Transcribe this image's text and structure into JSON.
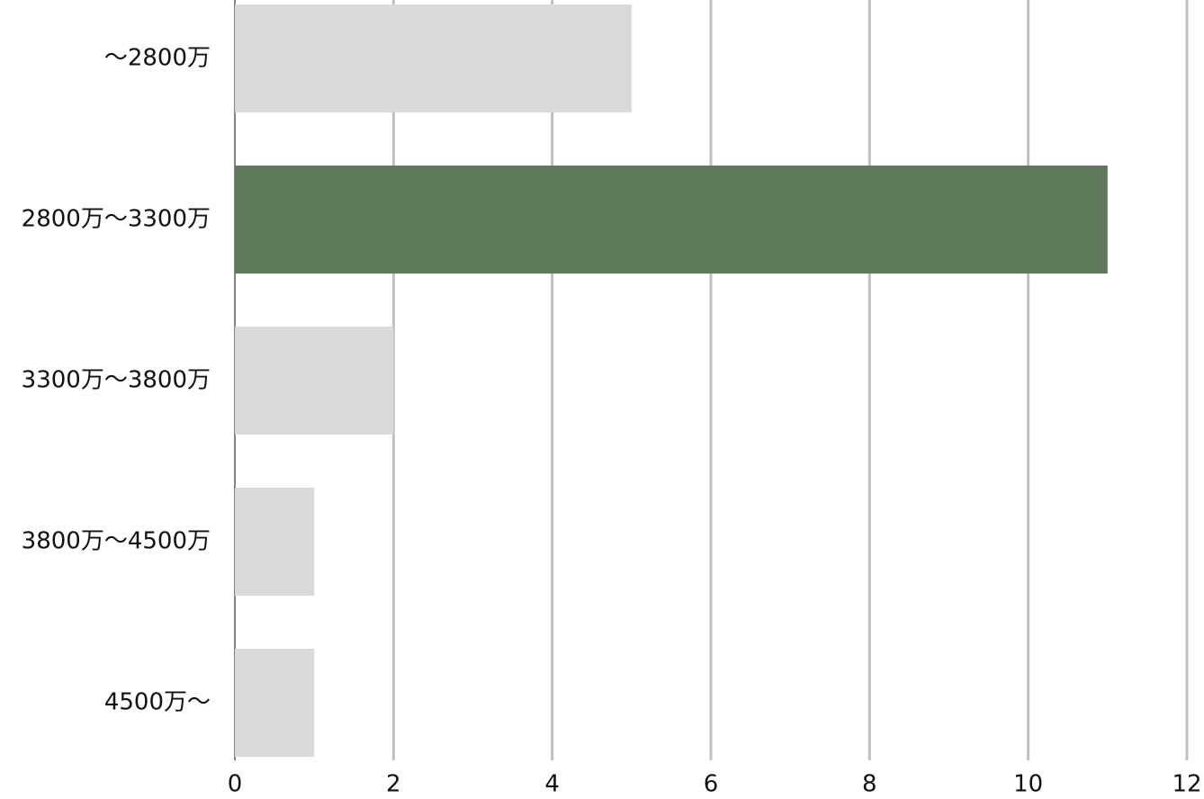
{
  "chart_data": {
    "type": "bar",
    "orientation": "horizontal",
    "categories": [
      "～2800万",
      "2800万～3300万",
      "3300万～3800万",
      "3800万～4500万",
      "4500万～"
    ],
    "values": [
      5,
      11,
      2,
      1,
      1
    ],
    "colors": [
      "#d9d9d9",
      "#5e7a5a",
      "#d9d9d9",
      "#d9d9d9",
      "#d9d9d9"
    ],
    "xlim": [
      0,
      12
    ],
    "xticks": [
      0,
      2,
      4,
      6,
      8,
      10,
      12
    ],
    "grid": true
  }
}
